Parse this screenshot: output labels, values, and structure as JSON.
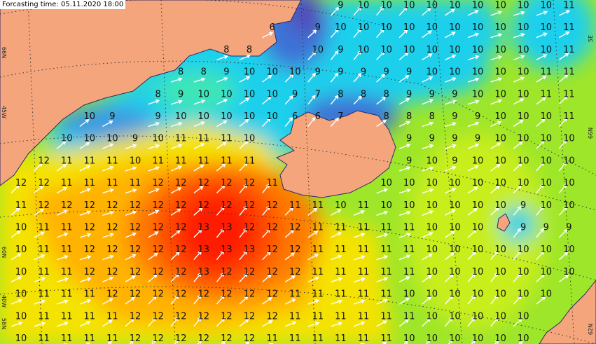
{
  "header": {
    "title": "Forcasting time: 05.11.2020 18:00"
  },
  "edge_labels": [
    "66N",
    "45W",
    "60N",
    "40W",
    "58N",
    "5E",
    "66N",
    "62N"
  ],
  "rows": [
    [
      null,
      null,
      null,
      null,
      null,
      null,
      null,
      null,
      null,
      null,
      null,
      null,
      null,
      null,
      9,
      10,
      10,
      10,
      10,
      10,
      10,
      10,
      10,
      10,
      11
    ],
    [
      null,
      null,
      null,
      null,
      null,
      null,
      null,
      null,
      null,
      null,
      null,
      6,
      null,
      9,
      10,
      10,
      10,
      10,
      10,
      10,
      10,
      10,
      10,
      10,
      11
    ],
    [
      null,
      null,
      null,
      null,
      null,
      null,
      null,
      null,
      null,
      8,
      8,
      null,
      null,
      10,
      9,
      10,
      10,
      10,
      10,
      10,
      10,
      10,
      10,
      10,
      11
    ],
    [
      null,
      null,
      null,
      null,
      null,
      null,
      null,
      8,
      8,
      9,
      10,
      10,
      10,
      9,
      9,
      9,
      9,
      9,
      10,
      10,
      10,
      10,
      10,
      11,
      11
    ],
    [
      null,
      null,
      null,
      null,
      null,
      null,
      8,
      9,
      10,
      10,
      10,
      10,
      9,
      7,
      8,
      8,
      8,
      9,
      9,
      9,
      10,
      10,
      10,
      11,
      11
    ],
    [
      null,
      null,
      null,
      10,
      9,
      null,
      9,
      10,
      10,
      10,
      10,
      10,
      6,
      6,
      7,
      null,
      8,
      8,
      8,
      9,
      9,
      10,
      10,
      10,
      11
    ],
    [
      null,
      null,
      10,
      10,
      10,
      9,
      10,
      11,
      11,
      11,
      10,
      null,
      null,
      null,
      null,
      null,
      null,
      9,
      9,
      9,
      9,
      10,
      10,
      10,
      10
    ],
    [
      null,
      12,
      11,
      11,
      11,
      10,
      11,
      11,
      11,
      11,
      11,
      null,
      null,
      null,
      null,
      null,
      null,
      9,
      10,
      9,
      10,
      10,
      10,
      10,
      10
    ],
    [
      12,
      12,
      11,
      11,
      11,
      11,
      12,
      12,
      12,
      12,
      12,
      11,
      null,
      null,
      null,
      null,
      10,
      10,
      10,
      10,
      10,
      10,
      10,
      10,
      10
    ],
    [
      11,
      12,
      12,
      12,
      12,
      12,
      12,
      12,
      12,
      12,
      12,
      12,
      11,
      11,
      10,
      11,
      10,
      10,
      10,
      10,
      10,
      10,
      9,
      10,
      10
    ],
    [
      10,
      11,
      11,
      12,
      12,
      12,
      12,
      12,
      13,
      13,
      12,
      12,
      12,
      11,
      11,
      11,
      11,
      11,
      10,
      10,
      10,
      null,
      9,
      9,
      9
    ],
    [
      10,
      11,
      11,
      12,
      12,
      12,
      12,
      12,
      13,
      13,
      13,
      12,
      12,
      11,
      11,
      11,
      11,
      11,
      10,
      10,
      10,
      10,
      10,
      10,
      10
    ],
    [
      10,
      11,
      11,
      12,
      12,
      12,
      12,
      12,
      13,
      12,
      12,
      12,
      12,
      11,
      11,
      11,
      11,
      11,
      10,
      10,
      10,
      10,
      10,
      10,
      10
    ],
    [
      10,
      11,
      11,
      11,
      12,
      12,
      12,
      12,
      12,
      12,
      12,
      12,
      11,
      11,
      11,
      11,
      11,
      10,
      10,
      10,
      10,
      10,
      10,
      10,
      null
    ],
    [
      10,
      11,
      11,
      11,
      11,
      12,
      12,
      12,
      12,
      12,
      12,
      12,
      11,
      11,
      11,
      11,
      11,
      11,
      10,
      10,
      10,
      10,
      10,
      null,
      null
    ],
    [
      10,
      11,
      11,
      11,
      11,
      12,
      12,
      12,
      12,
      12,
      12,
      11,
      11,
      11,
      11,
      11,
      11,
      10,
      10,
      10,
      10,
      10,
      10,
      null,
      null
    ]
  ]
}
